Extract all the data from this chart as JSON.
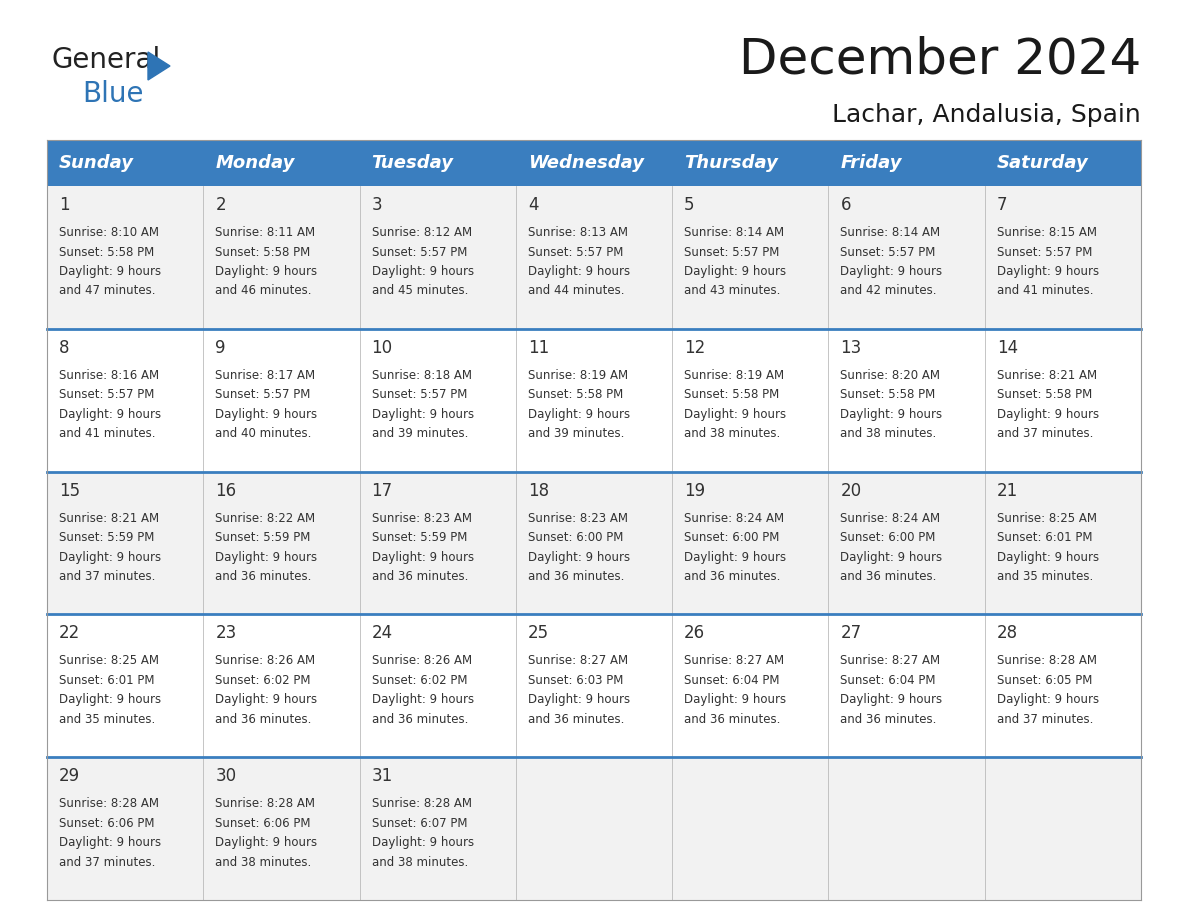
{
  "title": "December 2024",
  "subtitle": "Lachar, Andalusia, Spain",
  "header_color": "#3A7EBF",
  "header_text_color": "#FFFFFF",
  "day_names": [
    "Sunday",
    "Monday",
    "Tuesday",
    "Wednesday",
    "Thursday",
    "Friday",
    "Saturday"
  ],
  "row_colors": [
    "#F2F2F2",
    "#FFFFFF"
  ],
  "divider_color": "#3A7EBF",
  "text_color": "#333333",
  "days": [
    {
      "day": 1,
      "col": 0,
      "row": 0,
      "sunrise": "8:10 AM",
      "sunset": "5:58 PM",
      "daylight_hours": 9,
      "daylight_minutes": 47
    },
    {
      "day": 2,
      "col": 1,
      "row": 0,
      "sunrise": "8:11 AM",
      "sunset": "5:58 PM",
      "daylight_hours": 9,
      "daylight_minutes": 46
    },
    {
      "day": 3,
      "col": 2,
      "row": 0,
      "sunrise": "8:12 AM",
      "sunset": "5:57 PM",
      "daylight_hours": 9,
      "daylight_minutes": 45
    },
    {
      "day": 4,
      "col": 3,
      "row": 0,
      "sunrise": "8:13 AM",
      "sunset": "5:57 PM",
      "daylight_hours": 9,
      "daylight_minutes": 44
    },
    {
      "day": 5,
      "col": 4,
      "row": 0,
      "sunrise": "8:14 AM",
      "sunset": "5:57 PM",
      "daylight_hours": 9,
      "daylight_minutes": 43
    },
    {
      "day": 6,
      "col": 5,
      "row": 0,
      "sunrise": "8:14 AM",
      "sunset": "5:57 PM",
      "daylight_hours": 9,
      "daylight_minutes": 42
    },
    {
      "day": 7,
      "col": 6,
      "row": 0,
      "sunrise": "8:15 AM",
      "sunset": "5:57 PM",
      "daylight_hours": 9,
      "daylight_minutes": 41
    },
    {
      "day": 8,
      "col": 0,
      "row": 1,
      "sunrise": "8:16 AM",
      "sunset": "5:57 PM",
      "daylight_hours": 9,
      "daylight_minutes": 41
    },
    {
      "day": 9,
      "col": 1,
      "row": 1,
      "sunrise": "8:17 AM",
      "sunset": "5:57 PM",
      "daylight_hours": 9,
      "daylight_minutes": 40
    },
    {
      "day": 10,
      "col": 2,
      "row": 1,
      "sunrise": "8:18 AM",
      "sunset": "5:57 PM",
      "daylight_hours": 9,
      "daylight_minutes": 39
    },
    {
      "day": 11,
      "col": 3,
      "row": 1,
      "sunrise": "8:19 AM",
      "sunset": "5:58 PM",
      "daylight_hours": 9,
      "daylight_minutes": 39
    },
    {
      "day": 12,
      "col": 4,
      "row": 1,
      "sunrise": "8:19 AM",
      "sunset": "5:58 PM",
      "daylight_hours": 9,
      "daylight_minutes": 38
    },
    {
      "day": 13,
      "col": 5,
      "row": 1,
      "sunrise": "8:20 AM",
      "sunset": "5:58 PM",
      "daylight_hours": 9,
      "daylight_minutes": 38
    },
    {
      "day": 14,
      "col": 6,
      "row": 1,
      "sunrise": "8:21 AM",
      "sunset": "5:58 PM",
      "daylight_hours": 9,
      "daylight_minutes": 37
    },
    {
      "day": 15,
      "col": 0,
      "row": 2,
      "sunrise": "8:21 AM",
      "sunset": "5:59 PM",
      "daylight_hours": 9,
      "daylight_minutes": 37
    },
    {
      "day": 16,
      "col": 1,
      "row": 2,
      "sunrise": "8:22 AM",
      "sunset": "5:59 PM",
      "daylight_hours": 9,
      "daylight_minutes": 36
    },
    {
      "day": 17,
      "col": 2,
      "row": 2,
      "sunrise": "8:23 AM",
      "sunset": "5:59 PM",
      "daylight_hours": 9,
      "daylight_minutes": 36
    },
    {
      "day": 18,
      "col": 3,
      "row": 2,
      "sunrise": "8:23 AM",
      "sunset": "6:00 PM",
      "daylight_hours": 9,
      "daylight_minutes": 36
    },
    {
      "day": 19,
      "col": 4,
      "row": 2,
      "sunrise": "8:24 AM",
      "sunset": "6:00 PM",
      "daylight_hours": 9,
      "daylight_minutes": 36
    },
    {
      "day": 20,
      "col": 5,
      "row": 2,
      "sunrise": "8:24 AM",
      "sunset": "6:00 PM",
      "daylight_hours": 9,
      "daylight_minutes": 36
    },
    {
      "day": 21,
      "col": 6,
      "row": 2,
      "sunrise": "8:25 AM",
      "sunset": "6:01 PM",
      "daylight_hours": 9,
      "daylight_minutes": 35
    },
    {
      "day": 22,
      "col": 0,
      "row": 3,
      "sunrise": "8:25 AM",
      "sunset": "6:01 PM",
      "daylight_hours": 9,
      "daylight_minutes": 35
    },
    {
      "day": 23,
      "col": 1,
      "row": 3,
      "sunrise": "8:26 AM",
      "sunset": "6:02 PM",
      "daylight_hours": 9,
      "daylight_minutes": 36
    },
    {
      "day": 24,
      "col": 2,
      "row": 3,
      "sunrise": "8:26 AM",
      "sunset": "6:02 PM",
      "daylight_hours": 9,
      "daylight_minutes": 36
    },
    {
      "day": 25,
      "col": 3,
      "row": 3,
      "sunrise": "8:27 AM",
      "sunset": "6:03 PM",
      "daylight_hours": 9,
      "daylight_minutes": 36
    },
    {
      "day": 26,
      "col": 4,
      "row": 3,
      "sunrise": "8:27 AM",
      "sunset": "6:04 PM",
      "daylight_hours": 9,
      "daylight_minutes": 36
    },
    {
      "day": 27,
      "col": 5,
      "row": 3,
      "sunrise": "8:27 AM",
      "sunset": "6:04 PM",
      "daylight_hours": 9,
      "daylight_minutes": 36
    },
    {
      "day": 28,
      "col": 6,
      "row": 3,
      "sunrise": "8:28 AM",
      "sunset": "6:05 PM",
      "daylight_hours": 9,
      "daylight_minutes": 37
    },
    {
      "day": 29,
      "col": 0,
      "row": 4,
      "sunrise": "8:28 AM",
      "sunset": "6:06 PM",
      "daylight_hours": 9,
      "daylight_minutes": 37
    },
    {
      "day": 30,
      "col": 1,
      "row": 4,
      "sunrise": "8:28 AM",
      "sunset": "6:06 PM",
      "daylight_hours": 9,
      "daylight_minutes": 38
    },
    {
      "day": 31,
      "col": 2,
      "row": 4,
      "sunrise": "8:28 AM",
      "sunset": "6:07 PM",
      "daylight_hours": 9,
      "daylight_minutes": 38
    }
  ],
  "num_rows": 5,
  "logo_general_color": "#222222",
  "logo_blue_color": "#2E74B5",
  "title_fontsize": 36,
  "subtitle_fontsize": 18,
  "header_fontsize": 13,
  "day_num_fontsize": 12,
  "info_fontsize": 8.5
}
